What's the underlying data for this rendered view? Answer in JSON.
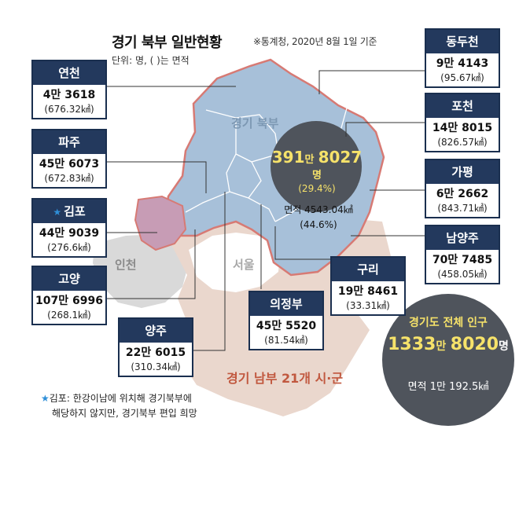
{
  "title": "경기 북부 일반현황",
  "source": "※통계청, 2020년 8월 1일 기준",
  "unit": "단위: 명, ( )는 면적",
  "map_labels": {
    "gyeonggi_north": "경기 북부",
    "incheon": "인천",
    "seoul": "서울",
    "gyeonggi_south": "경기 남부 21개 시·군"
  },
  "north_total": {
    "pop_a": "391",
    "man": "만",
    "pop_b": "8027",
    "myeong": "명",
    "pct": "(29.4%)",
    "area_line": "면적 4543.04㎢",
    "area_pct": "(44.6%)"
  },
  "province_total": {
    "label": "경기도 전체 인구",
    "pop_a": "1333",
    "man": "만",
    "pop_b": "8020",
    "myeong": "명",
    "area": "면적 1만 192.5㎢"
  },
  "cities": {
    "yeoncheon": {
      "name": "연천",
      "pop": "4만 3618",
      "area": "(676.32㎢)"
    },
    "paju": {
      "name": "파주",
      "pop": "45만 6073",
      "area": "(672.83㎢)"
    },
    "gimpo": {
      "name": "김포",
      "pop": "44만 9039",
      "area": "(276.6㎢)"
    },
    "goyang": {
      "name": "고양",
      "pop": "107만 6996",
      "area": "(268.1㎢)"
    },
    "yangju": {
      "name": "양주",
      "pop": "22만 6015",
      "area": "(310.34㎢)"
    },
    "uijeongbu": {
      "name": "의정부",
      "pop": "45만 5520",
      "area": "(81.54㎢)"
    },
    "guri": {
      "name": "구리",
      "pop": "19만 8461",
      "area": "(33.31㎢)"
    },
    "dongducheon": {
      "name": "동두천",
      "pop": "9만 4143",
      "area": "(95.67㎢)"
    },
    "pocheon": {
      "name": "포천",
      "pop": "14만 8015",
      "area": "(826.57㎢)"
    },
    "gapyeong": {
      "name": "가평",
      "pop": "6만 2662",
      "area": "(843.71㎢)"
    },
    "namyangju": {
      "name": "남양주",
      "pop": "70만 7485",
      "area": "(458.05㎢)"
    }
  },
  "note": {
    "star": "★",
    "line1": "김포: 한강이남에 위치해 경기북부에",
    "line2": "해당하지 않지만, 경기북부 편입 희망"
  },
  "colors": {
    "north_fill": "#a7c0d9",
    "north_border": "#d77a74",
    "south_fill": "#ead7cd",
    "gimpo_fill": "#c79cb5",
    "header_navy": "#23395d",
    "highlight_yellow": "#f6e26a",
    "circle_gray": "#4f545c"
  }
}
